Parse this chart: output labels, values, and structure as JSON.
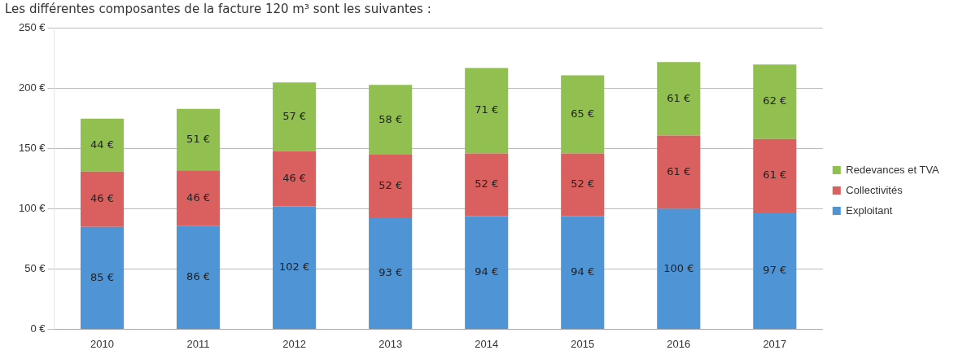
{
  "chart_data": {
    "type": "bar",
    "title": "Les différentes composantes de la facture 120 m³ sont les suivantes :",
    "categories": [
      "2010",
      "2011",
      "2012",
      "2013",
      "2014",
      "2015",
      "2016",
      "2017"
    ],
    "stacked": true,
    "series": [
      {
        "name": "Exploitant",
        "color": "#4f94d4",
        "values": [
          85,
          86,
          102,
          93,
          94,
          94,
          100,
          97
        ],
        "value_labels": [
          "85 €",
          "86 €",
          "102 €",
          "93 €",
          "94 €",
          "94 €",
          "100 €",
          "97 €"
        ]
      },
      {
        "name": "Collectivités",
        "color": "#d9605e",
        "values": [
          46,
          46,
          46,
          52,
          52,
          52,
          61,
          61
        ],
        "value_labels": [
          "46 €",
          "46 €",
          "46 €",
          "52 €",
          "52 €",
          "52 €",
          "61 €",
          "61 €"
        ]
      },
      {
        "name": "Redevances et TVA",
        "color": "#92c050",
        "values": [
          44,
          51,
          57,
          58,
          71,
          65,
          61,
          62
        ],
        "value_labels": [
          "44 €",
          "51 €",
          "57 €",
          "58 €",
          "71 €",
          "65 €",
          "61 €",
          "62 €"
        ]
      }
    ],
    "ylim": [
      0,
      250
    ],
    "yticks": [
      {
        "value": 0,
        "label": "0 €"
      },
      {
        "value": 50,
        "label": "50 €"
      },
      {
        "value": 100,
        "label": "100 €"
      },
      {
        "value": 150,
        "label": "150 €"
      },
      {
        "value": 200,
        "label": "200 €"
      },
      {
        "value": 250,
        "label": "250 €"
      }
    ],
    "grid": "y",
    "legend": "right"
  }
}
